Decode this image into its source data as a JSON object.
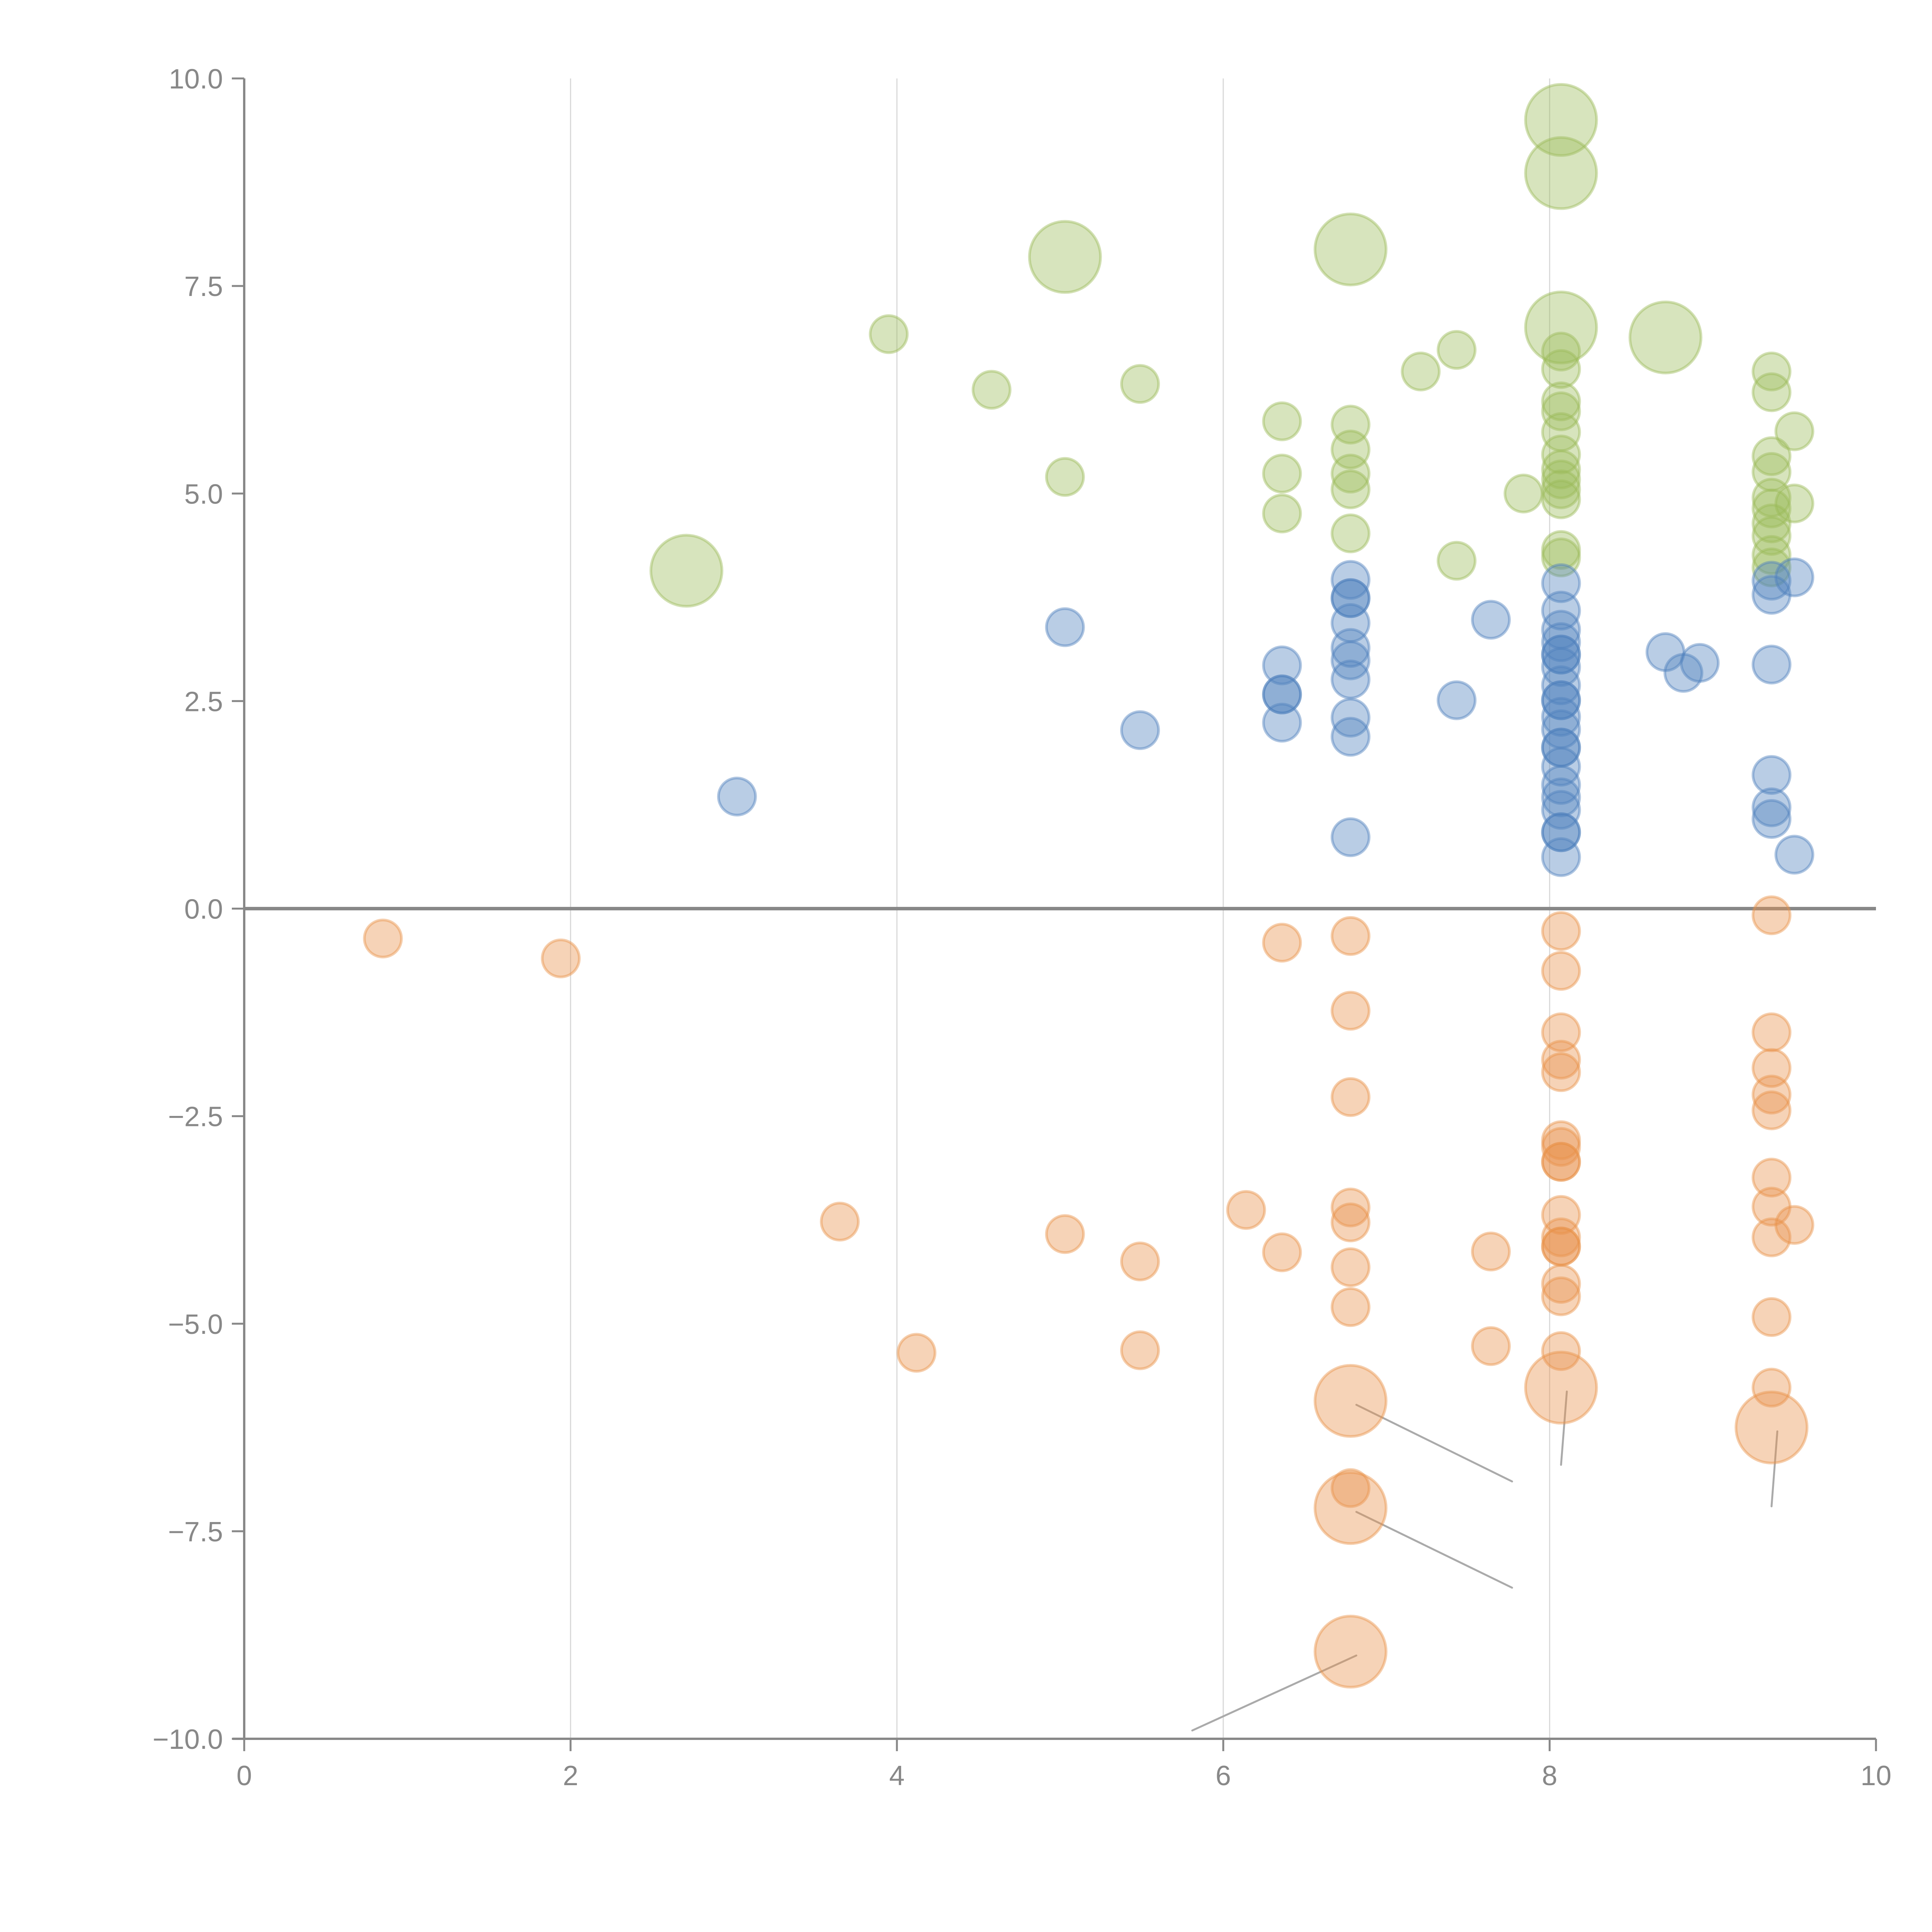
{
  "chart_data": {
    "type": "scatter",
    "subtype": "bubble",
    "title": "",
    "xlabel": "",
    "ylabel": "",
    "xlim": [
      0,
      10
    ],
    "ylim": [
      -10,
      10
    ],
    "grid": "vertical",
    "legend": "none",
    "x_ticks": [
      "0",
      "2",
      "4",
      "6",
      "8",
      "10"
    ],
    "x_tick_values": [
      0,
      2,
      4,
      6,
      8,
      10
    ],
    "y_ticks": [
      "10.0",
      "7.5",
      "5.0",
      "2.5",
      "0.0",
      "−2.5",
      "−5.0",
      "−7.5",
      "−10.0"
    ],
    "y_tick_values": [
      10,
      7.5,
      5,
      2.5,
      0,
      -2.5,
      -5,
      -7.5,
      -10
    ],
    "series": [
      {
        "name": "green",
        "color": "#9bbb59",
        "points": [
          [
            3.95,
            6.92,
            1
          ],
          [
            4.58,
            6.25,
            1
          ],
          [
            5.49,
            6.32,
            1
          ],
          [
            5.03,
            5.2,
            1
          ],
          [
            6.36,
            5.87,
            1
          ],
          [
            6.36,
            5.24,
            1
          ],
          [
            6.36,
            4.76,
            1
          ],
          [
            6.78,
            5.83,
            1
          ],
          [
            6.78,
            5.53,
            1
          ],
          [
            6.78,
            5.24,
            1
          ],
          [
            6.78,
            5.05,
            1
          ],
          [
            6.78,
            4.52,
            1
          ],
          [
            7.21,
            6.47,
            1
          ],
          [
            7.43,
            6.73,
            1
          ],
          [
            7.43,
            4.19,
            1
          ],
          [
            7.84,
            5.0,
            1
          ],
          [
            8.07,
            6.71,
            1
          ],
          [
            8.07,
            6.5,
            1
          ],
          [
            8.07,
            6.11,
            1
          ],
          [
            8.07,
            5.99,
            1
          ],
          [
            8.07,
            5.74,
            1
          ],
          [
            8.07,
            5.47,
            1
          ],
          [
            8.07,
            5.29,
            1
          ],
          [
            8.07,
            5.17,
            1
          ],
          [
            8.07,
            5.05,
            1
          ],
          [
            8.07,
            4.93,
            1
          ],
          [
            8.07,
            4.32,
            1
          ],
          [
            8.07,
            4.23,
            1
          ],
          [
            9.36,
            6.47,
            1
          ],
          [
            9.36,
            6.22,
            1
          ],
          [
            9.36,
            5.45,
            1
          ],
          [
            9.36,
            5.26,
            1
          ],
          [
            9.36,
            4.95,
            1
          ],
          [
            9.36,
            4.82,
            1
          ],
          [
            9.36,
            4.64,
            1
          ],
          [
            9.36,
            4.49,
            1
          ],
          [
            9.36,
            4.26,
            1
          ],
          [
            9.36,
            4.11,
            1
          ],
          [
            9.5,
            5.75,
            1
          ],
          [
            9.5,
            4.88,
            1
          ],
          [
            2.71,
            4.07,
            4
          ],
          [
            5.03,
            7.85,
            4
          ],
          [
            6.78,
            7.94,
            4
          ],
          [
            8.07,
            9.5,
            4
          ],
          [
            8.07,
            8.86,
            4
          ],
          [
            8.07,
            7.0,
            4
          ],
          [
            8.71,
            6.88,
            4
          ]
        ]
      },
      {
        "name": "blue",
        "color": "#4f81bd",
        "points": [
          [
            3.02,
            1.35,
            1
          ],
          [
            5.03,
            3.39,
            1
          ],
          [
            5.49,
            2.15,
            1
          ],
          [
            6.36,
            2.93,
            1
          ],
          [
            6.36,
            2.58,
            1
          ],
          [
            6.36,
            2.58,
            1
          ],
          [
            6.36,
            2.24,
            1
          ],
          [
            6.78,
            3.96,
            1
          ],
          [
            6.78,
            3.74,
            1
          ],
          [
            6.78,
            3.74,
            1
          ],
          [
            6.78,
            3.44,
            1
          ],
          [
            6.78,
            3.14,
            1
          ],
          [
            6.78,
            2.99,
            1
          ],
          [
            6.78,
            2.76,
            1
          ],
          [
            6.78,
            2.3,
            1
          ],
          [
            6.78,
            2.07,
            1
          ],
          [
            6.78,
            0.86,
            1
          ],
          [
            7.43,
            2.51,
            1
          ],
          [
            7.64,
            3.48,
            1
          ],
          [
            8.07,
            3.92,
            1
          ],
          [
            8.07,
            3.59,
            1
          ],
          [
            8.07,
            3.36,
            1
          ],
          [
            8.07,
            3.21,
            1
          ],
          [
            8.07,
            3.06,
            1
          ],
          [
            8.07,
            3.06,
            1
          ],
          [
            8.07,
            2.91,
            1
          ],
          [
            8.07,
            2.69,
            1
          ],
          [
            8.07,
            2.51,
            1
          ],
          [
            8.07,
            2.51,
            1
          ],
          [
            8.07,
            2.31,
            1
          ],
          [
            8.07,
            2.16,
            1
          ],
          [
            8.07,
            1.94,
            1
          ],
          [
            8.07,
            1.94,
            1
          ],
          [
            8.07,
            1.71,
            1
          ],
          [
            8.07,
            1.49,
            1
          ],
          [
            8.07,
            1.34,
            1
          ],
          [
            8.07,
            1.19,
            1
          ],
          [
            8.07,
            0.92,
            1
          ],
          [
            8.07,
            0.92,
            1
          ],
          [
            8.07,
            0.62,
            1
          ],
          [
            8.71,
            3.09,
            1
          ],
          [
            8.82,
            2.84,
            1
          ],
          [
            8.92,
            2.96,
            1
          ],
          [
            9.36,
            3.95,
            1
          ],
          [
            9.36,
            3.78,
            1
          ],
          [
            9.36,
            2.94,
            1
          ],
          [
            9.36,
            1.61,
            1
          ],
          [
            9.36,
            1.22,
            1
          ],
          [
            9.36,
            1.08,
            1
          ],
          [
            9.5,
            3.99,
            1
          ],
          [
            9.5,
            0.65,
            1
          ]
        ]
      },
      {
        "name": "orange",
        "color": "#e8924a",
        "points": [
          [
            0.85,
            -0.36,
            1
          ],
          [
            1.94,
            -0.6,
            1
          ],
          [
            3.65,
            -3.77,
            1
          ],
          [
            4.12,
            -5.35,
            1
          ],
          [
            5.03,
            -3.92,
            1
          ],
          [
            5.49,
            -4.25,
            1
          ],
          [
            5.49,
            -5.32,
            1
          ],
          [
            6.14,
            -3.63,
            1
          ],
          [
            6.36,
            -0.41,
            1
          ],
          [
            6.36,
            -4.14,
            1
          ],
          [
            6.78,
            -0.33,
            1
          ],
          [
            6.78,
            -1.23,
            1
          ],
          [
            6.78,
            -2.27,
            1
          ],
          [
            6.78,
            -3.6,
            1
          ],
          [
            6.78,
            -3.78,
            1
          ],
          [
            6.78,
            -4.32,
            1
          ],
          [
            6.78,
            -4.8,
            1
          ],
          [
            6.78,
            -6.98,
            1
          ],
          [
            7.64,
            -4.13,
            1
          ],
          [
            7.64,
            -5.27,
            1
          ],
          [
            8.07,
            -0.27,
            1
          ],
          [
            8.07,
            -0.75,
            1
          ],
          [
            8.07,
            -1.49,
            1
          ],
          [
            8.07,
            -1.82,
            1
          ],
          [
            8.07,
            -1.97,
            1
          ],
          [
            8.07,
            -2.79,
            1
          ],
          [
            8.07,
            -2.87,
            1
          ],
          [
            8.07,
            -3.05,
            1
          ],
          [
            8.07,
            -3.05,
            1
          ],
          [
            8.07,
            -3.69,
            1
          ],
          [
            8.07,
            -3.96,
            1
          ],
          [
            8.07,
            -4.07,
            1
          ],
          [
            8.07,
            -4.07,
            1
          ],
          [
            8.07,
            -4.52,
            1
          ],
          [
            8.07,
            -4.67,
            1
          ],
          [
            8.07,
            -5.33,
            1
          ],
          [
            9.36,
            -0.08,
            1
          ],
          [
            9.36,
            -1.49,
            1
          ],
          [
            9.36,
            -1.92,
            1
          ],
          [
            9.36,
            -2.24,
            1
          ],
          [
            9.36,
            -2.43,
            1
          ],
          [
            9.36,
            -3.24,
            1
          ],
          [
            9.36,
            -3.59,
            1
          ],
          [
            9.36,
            -3.96,
            1
          ],
          [
            9.36,
            -4.92,
            1
          ],
          [
            9.36,
            -5.77,
            1
          ],
          [
            9.5,
            -3.81,
            1
          ],
          [
            6.78,
            -5.93,
            4
          ],
          [
            6.78,
            -7.22,
            4
          ],
          [
            6.78,
            -8.95,
            4
          ],
          [
            8.07,
            -5.77,
            4
          ],
          [
            9.36,
            -6.25,
            4
          ]
        ]
      }
    ],
    "annotations": [
      {
        "point": [
          6.78,
          -5.93
        ],
        "leader_to": [
          7.77,
          -6.9
        ],
        "label": ""
      },
      {
        "point": [
          6.78,
          -7.22
        ],
        "leader_to": [
          7.77,
          -8.18
        ],
        "label": ""
      },
      {
        "point": [
          6.78,
          -8.95
        ],
        "leader_to": [
          5.81,
          -9.9
        ],
        "label": ""
      },
      {
        "point": [
          8.07,
          -5.77
        ],
        "leader_to": [
          8.07,
          -6.7
        ],
        "label": ""
      },
      {
        "point": [
          9.36,
          -6.25
        ],
        "leader_to": [
          9.36,
          -7.2
        ],
        "label": ""
      }
    ]
  }
}
